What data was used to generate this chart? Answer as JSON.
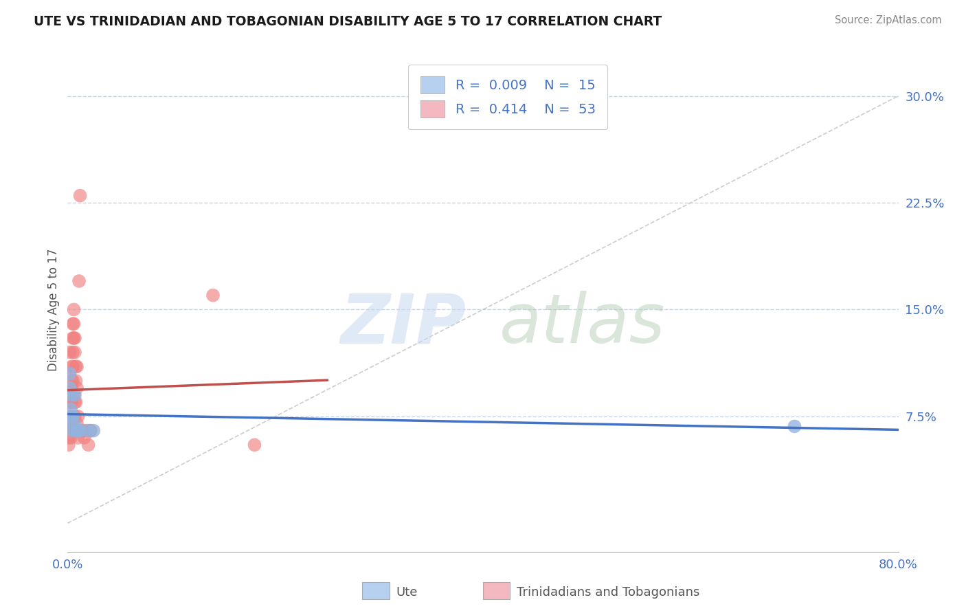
{
  "title": "UTE VS TRINIDADIAN AND TOBAGONIAN DISABILITY AGE 5 TO 17 CORRELATION CHART",
  "source": "Source: ZipAtlas.com",
  "ylabel_label": "Disability Age 5 to 17",
  "legend_label1": "Ute",
  "legend_label2": "Trinidadians and Tobagonians",
  "R_ute": 0.009,
  "N_ute": 15,
  "R_tnt": 0.414,
  "N_tnt": 53,
  "ute_color": "#92b4e0",
  "tnt_color": "#f08080",
  "trendline_ute_color": "#4472c4",
  "trendline_tnt_color": "#c0504d",
  "diagonal_color": "#c0c0c0",
  "background_color": "#ffffff",
  "grid_color": "#c8d4e8",
  "xlim": [
    0.0,
    0.8
  ],
  "ylim": [
    -0.02,
    0.32
  ],
  "ytick_vals": [
    0.075,
    0.15,
    0.225,
    0.3
  ],
  "ytick_labels": [
    "7.5%",
    "15.0%",
    "22.5%",
    "30.0%"
  ],
  "xtick_vals": [
    0.0,
    0.8
  ],
  "xtick_labels": [
    "0.0%",
    "80.0%"
  ],
  "ute_points_x": [
    0.002,
    0.002,
    0.003,
    0.003,
    0.004,
    0.004,
    0.005,
    0.006,
    0.007,
    0.008,
    0.01,
    0.012,
    0.02,
    0.025,
    0.7
  ],
  "ute_points_y": [
    0.105,
    0.095,
    0.09,
    0.08,
    0.075,
    0.065,
    0.075,
    0.07,
    0.09,
    0.065,
    0.065,
    0.065,
    0.065,
    0.065,
    0.068
  ],
  "tnt_points_x": [
    0.001,
    0.001,
    0.001,
    0.001,
    0.001,
    0.002,
    0.002,
    0.002,
    0.002,
    0.002,
    0.003,
    0.003,
    0.003,
    0.003,
    0.003,
    0.004,
    0.004,
    0.004,
    0.004,
    0.004,
    0.005,
    0.005,
    0.005,
    0.005,
    0.005,
    0.006,
    0.006,
    0.006,
    0.006,
    0.007,
    0.007,
    0.007,
    0.007,
    0.008,
    0.008,
    0.008,
    0.009,
    0.009,
    0.009,
    0.01,
    0.01,
    0.01,
    0.011,
    0.012,
    0.013,
    0.015,
    0.016,
    0.018,
    0.02,
    0.022,
    0.022,
    0.14,
    0.18
  ],
  "tnt_points_y": [
    0.075,
    0.07,
    0.065,
    0.06,
    0.055,
    0.12,
    0.105,
    0.095,
    0.085,
    0.075,
    0.085,
    0.075,
    0.07,
    0.065,
    0.06,
    0.11,
    0.1,
    0.095,
    0.085,
    0.075,
    0.14,
    0.13,
    0.12,
    0.11,
    0.1,
    0.15,
    0.14,
    0.13,
    0.09,
    0.13,
    0.12,
    0.085,
    0.075,
    0.11,
    0.1,
    0.085,
    0.11,
    0.095,
    0.07,
    0.075,
    0.065,
    0.06,
    0.17,
    0.23,
    0.065,
    0.065,
    0.06,
    0.065,
    0.055,
    0.065,
    0.065,
    0.16,
    0.055
  ]
}
